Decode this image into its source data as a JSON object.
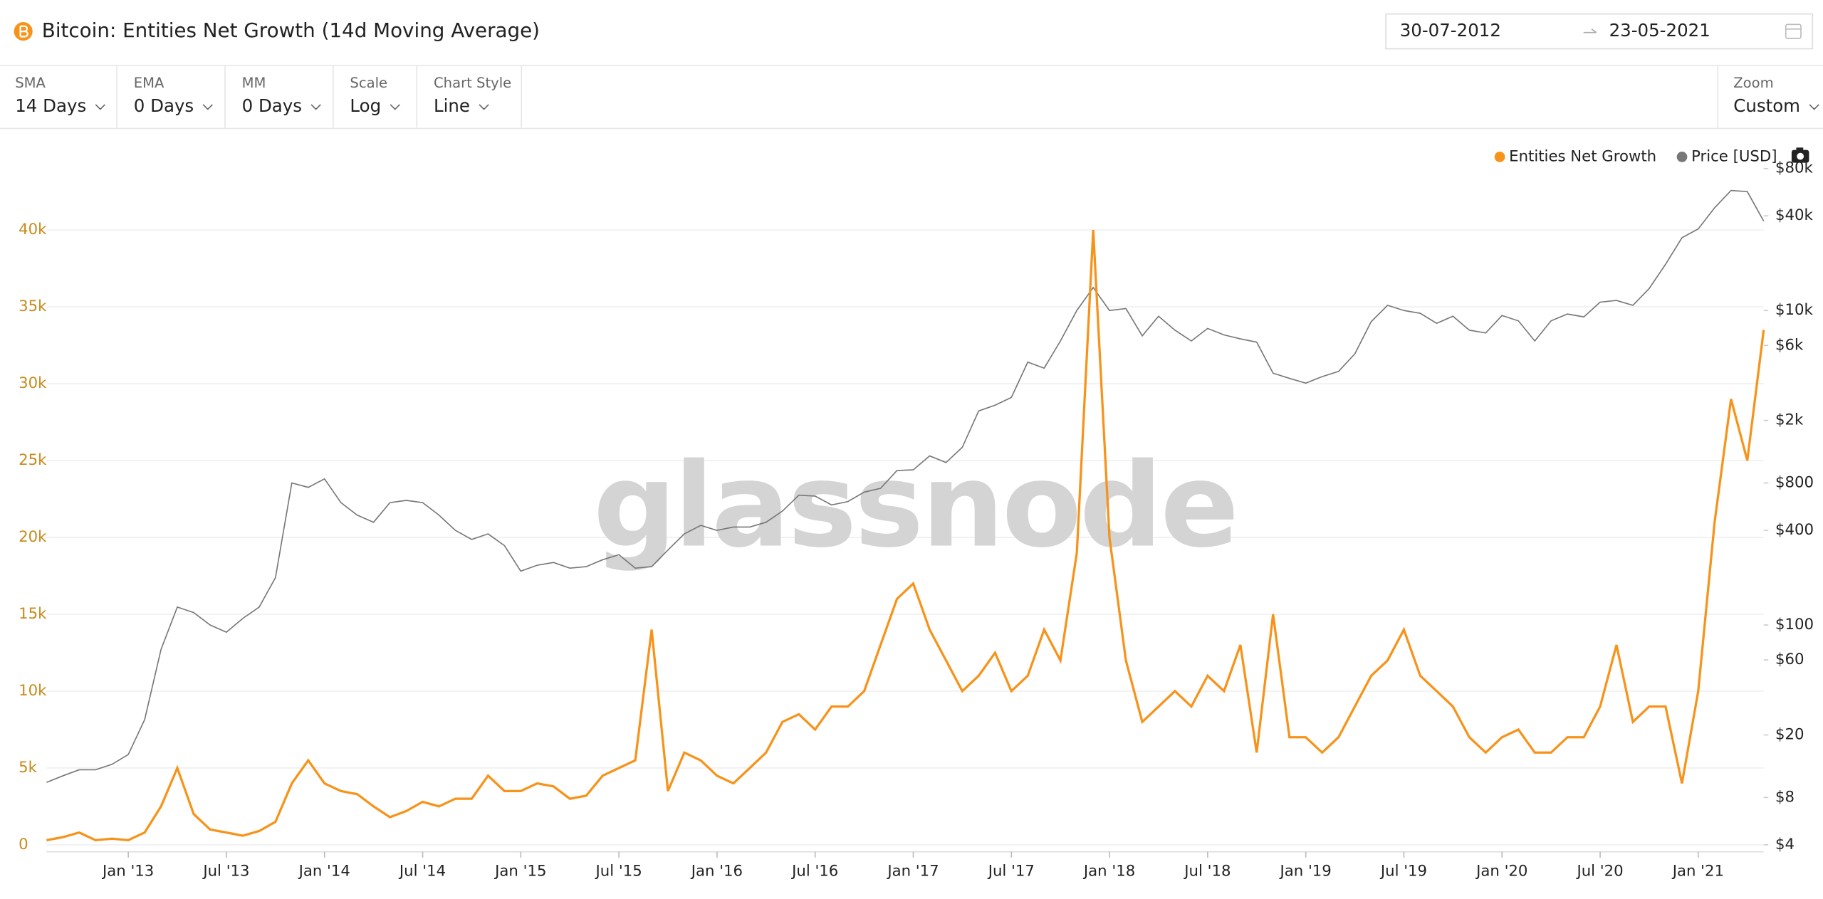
{
  "header": {
    "title": "Bitcoin: Entities Net Growth (14d Moving Average)",
    "date_from": "30-07-2012",
    "date_to": "23-05-2021"
  },
  "controls": [
    {
      "label": "SMA",
      "value": "14 Days"
    },
    {
      "label": "EMA",
      "value": "0 Days"
    },
    {
      "label": "MM",
      "value": "0 Days"
    },
    {
      "label": "Scale",
      "value": "Log"
    },
    {
      "label": "Chart Style",
      "value": "Line"
    }
  ],
  "zoom": {
    "label": "Zoom",
    "value": "Custom"
  },
  "chart_data": {
    "type": "line",
    "watermark": "glassnode",
    "legend": "top-right",
    "grid": true,
    "y2log": true,
    "xlim": [
      "2012-08",
      "2021-05"
    ],
    "x": [
      "2012-08",
      "2012-09",
      "2012-10",
      "2012-11",
      "2012-12",
      "2013-01",
      "2013-02",
      "2013-03",
      "2013-04",
      "2013-05",
      "2013-06",
      "2013-07",
      "2013-08",
      "2013-09",
      "2013-10",
      "2013-11",
      "2013-12",
      "2014-01",
      "2014-02",
      "2014-03",
      "2014-04",
      "2014-05",
      "2014-06",
      "2014-07",
      "2014-08",
      "2014-09",
      "2014-10",
      "2014-11",
      "2014-12",
      "2015-01",
      "2015-02",
      "2015-03",
      "2015-04",
      "2015-05",
      "2015-06",
      "2015-07",
      "2015-08",
      "2015-09",
      "2015-10",
      "2015-11",
      "2015-12",
      "2016-01",
      "2016-02",
      "2016-03",
      "2016-04",
      "2016-05",
      "2016-06",
      "2016-07",
      "2016-08",
      "2016-09",
      "2016-10",
      "2016-11",
      "2016-12",
      "2017-01",
      "2017-02",
      "2017-03",
      "2017-04",
      "2017-05",
      "2017-06",
      "2017-07",
      "2017-08",
      "2017-09",
      "2017-10",
      "2017-11",
      "2017-12",
      "2018-01",
      "2018-02",
      "2018-03",
      "2018-04",
      "2018-05",
      "2018-06",
      "2018-07",
      "2018-08",
      "2018-09",
      "2018-10",
      "2018-11",
      "2018-12",
      "2019-01",
      "2019-02",
      "2019-03",
      "2019-04",
      "2019-05",
      "2019-06",
      "2019-07",
      "2019-08",
      "2019-09",
      "2019-10",
      "2019-11",
      "2019-12",
      "2020-01",
      "2020-02",
      "2020-03",
      "2020-04",
      "2020-05",
      "2020-06",
      "2020-07",
      "2020-08",
      "2020-09",
      "2020-10",
      "2020-11",
      "2020-12",
      "2021-01",
      "2021-02",
      "2021-03",
      "2021-04",
      "2021-05"
    ],
    "series": [
      {
        "name": "Entities Net Growth",
        "color": "#f7931a",
        "values": [
          300,
          500,
          800,
          300,
          400,
          300,
          800,
          2500,
          5000,
          2000,
          1000,
          800,
          600,
          900,
          1500,
          4000,
          5500,
          4000,
          3500,
          3300,
          2500,
          1800,
          2200,
          2800,
          2500,
          3000,
          3000,
          4500,
          3500,
          3500,
          4000,
          3800,
          3000,
          3200,
          4500,
          5000,
          5500,
          14000,
          3500,
          6000,
          5500,
          4500,
          4000,
          5000,
          6000,
          8000,
          8500,
          7500,
          9000,
          9000,
          10000,
          13000,
          16000,
          17000,
          14000,
          12000,
          10000,
          11000,
          12500,
          10000,
          11000,
          14000,
          12000,
          19000,
          40000,
          20000,
          12000,
          8000,
          9000,
          10000,
          9000,
          11000,
          10000,
          13000,
          6000,
          15000,
          7000,
          7000,
          6000,
          7000,
          9000,
          11000,
          12000,
          14000,
          11000,
          10000,
          9000,
          7000,
          6000,
          7000,
          7500,
          6000,
          6000,
          7000,
          7000,
          9000,
          13000,
          8000,
          9000,
          9000,
          4000,
          10000,
          21000,
          29000,
          25000,
          33500
        ]
      },
      {
        "name": "Price [USD]",
        "color": "#777777",
        "axis": "y2",
        "values": [
          10,
          11,
          12,
          12,
          13,
          15,
          25,
          70,
          130,
          120,
          100,
          90,
          110,
          130,
          200,
          800,
          750,
          850,
          600,
          500,
          450,
          600,
          620,
          600,
          500,
          400,
          350,
          380,
          320,
          220,
          240,
          250,
          230,
          235,
          260,
          280,
          230,
          235,
          300,
          380,
          430,
          400,
          420,
          420,
          450,
          530,
          670,
          660,
          580,
          610,
          700,
          740,
          960,
          970,
          1190,
          1080,
          1350,
          2300,
          2500,
          2800,
          4700,
          4300,
          6400,
          10000,
          14000,
          10000,
          10300,
          6900,
          9200,
          7500,
          6400,
          7700,
          7000,
          6600,
          6300,
          4000,
          3700,
          3450,
          3800,
          4100,
          5300,
          8500,
          10800,
          10000,
          9600,
          8300,
          9200,
          7500,
          7200,
          9300,
          8600,
          6400,
          8600,
          9500,
          9100,
          11300,
          11600,
          10800,
          13800,
          19700,
          29000,
          33000,
          45000,
          58000,
          57000,
          37000
        ]
      }
    ],
    "ylim": [
      0,
      44000
    ],
    "yticks": [
      0,
      {
        "value": 5000,
        "label": "5k"
      },
      {
        "value": 10000,
        "label": "10k"
      },
      {
        "value": 15000,
        "label": "15k"
      },
      {
        "value": 20000,
        "label": "20k"
      },
      {
        "value": 25000,
        "label": "25k"
      },
      {
        "value": 30000,
        "label": "30k"
      },
      {
        "value": 35000,
        "label": "35k"
      },
      {
        "value": 40000,
        "label": "40k"
      }
    ],
    "y2lim": [
      4,
      80000
    ],
    "y2ticks": [
      {
        "value": 4,
        "label": "$4"
      },
      {
        "value": 8,
        "label": "$8"
      },
      {
        "value": 20,
        "label": "$20"
      },
      {
        "value": 60,
        "label": "$60"
      },
      {
        "value": 100,
        "label": "$100"
      },
      {
        "value": 400,
        "label": "$400"
      },
      {
        "value": 800,
        "label": "$800"
      },
      {
        "value": 2000,
        "label": "$2k"
      },
      {
        "value": 6000,
        "label": "$6k"
      },
      {
        "value": 10000,
        "label": "$10k"
      },
      {
        "value": 40000,
        "label": "$40k"
      },
      {
        "value": 80000,
        "label": "$80k"
      }
    ],
    "xticks": [
      {
        "value": "2013-01",
        "label": "Jan '13"
      },
      {
        "value": "2013-07",
        "label": "Jul '13"
      },
      {
        "value": "2014-01",
        "label": "Jan '14"
      },
      {
        "value": "2014-07",
        "label": "Jul '14"
      },
      {
        "value": "2015-01",
        "label": "Jan '15"
      },
      {
        "value": "2015-07",
        "label": "Jul '15"
      },
      {
        "value": "2016-01",
        "label": "Jan '16"
      },
      {
        "value": "2016-07",
        "label": "Jul '16"
      },
      {
        "value": "2017-01",
        "label": "Jan '17"
      },
      {
        "value": "2017-07",
        "label": "Jul '17"
      },
      {
        "value": "2018-01",
        "label": "Jan '18"
      },
      {
        "value": "2018-07",
        "label": "Jul '18"
      },
      {
        "value": "2019-01",
        "label": "Jan '19"
      },
      {
        "value": "2019-07",
        "label": "Jul '19"
      },
      {
        "value": "2020-01",
        "label": "Jan '20"
      },
      {
        "value": "2020-07",
        "label": "Jul '20"
      },
      {
        "value": "2021-01",
        "label": "Jan '21"
      }
    ]
  }
}
